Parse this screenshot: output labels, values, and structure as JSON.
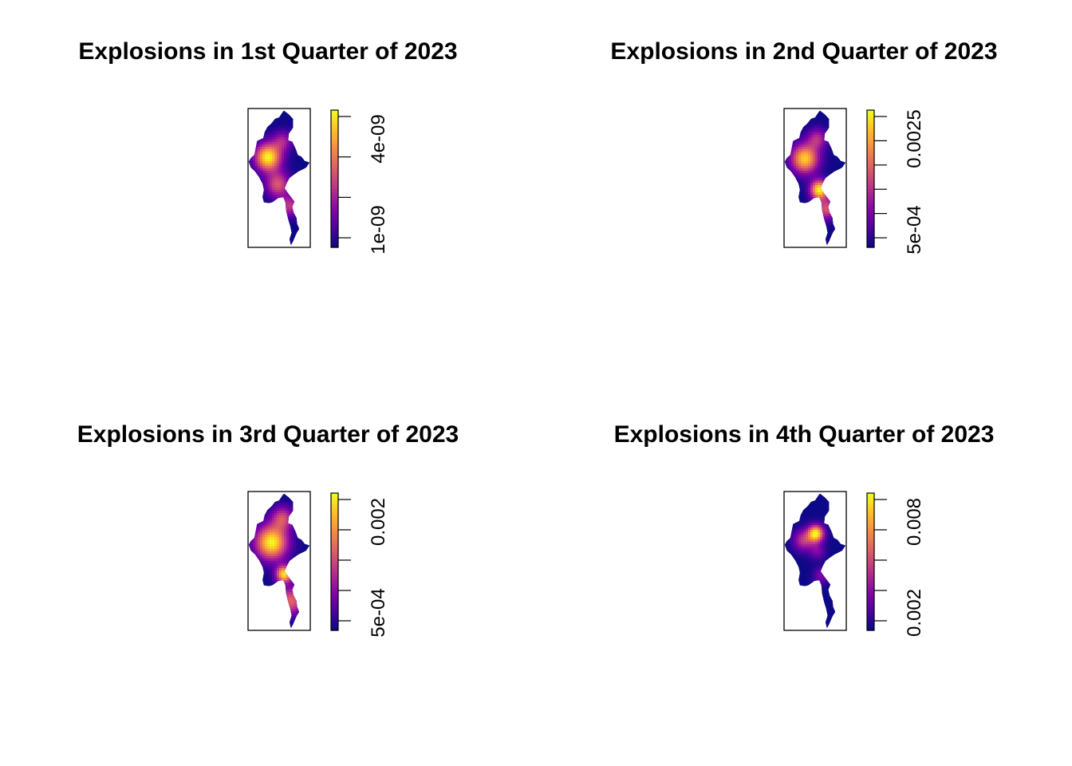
{
  "palette": {
    "stops": [
      "#0D0887",
      "#4B03A1",
      "#7E03A8",
      "#A82296",
      "#CC4778",
      "#E66C5C",
      "#F89540",
      "#FDC328",
      "#F0F921"
    ],
    "land_color": "#0D0887",
    "border_color": "#000000"
  },
  "chart_data": [
    {
      "type": "heatmap",
      "title": "Explosions in 1st Quarter of 2023",
      "legend_ticks": [
        "1e-09",
        "4e-09"
      ],
      "legend_tick_count": 4,
      "legend_range": [
        0,
        4.4e-09
      ],
      "hotspots": [
        {
          "lon": 95.1,
          "lat": 22.0,
          "intensity": 1.0,
          "spread": 1.3
        },
        {
          "lon": 96.5,
          "lat": 18.3,
          "intensity": 0.55,
          "spread": 1.2
        },
        {
          "lon": 98.2,
          "lat": 15.4,
          "intensity": 0.45,
          "spread": 1.0
        },
        {
          "lon": 97.2,
          "lat": 24.2,
          "intensity": 0.35,
          "spread": 1.0
        }
      ]
    },
    {
      "type": "heatmap",
      "title": "Explosions in 2nd Quarter of 2023",
      "legend_ticks": [
        "5e-04",
        "0.0025"
      ],
      "legend_tick_count": 6,
      "legend_range": [
        0,
        0.0029
      ],
      "hotspots": [
        {
          "lon": 95.2,
          "lat": 21.8,
          "intensity": 0.9,
          "spread": 1.35
        },
        {
          "lon": 97.3,
          "lat": 17.6,
          "intensity": 1.0,
          "spread": 0.9
        },
        {
          "lon": 98.3,
          "lat": 15.0,
          "intensity": 0.55,
          "spread": 1.0
        },
        {
          "lon": 97.0,
          "lat": 24.5,
          "intensity": 0.4,
          "spread": 1.0
        }
      ]
    },
    {
      "type": "heatmap",
      "title": "Explosions in 3rd Quarter of 2023",
      "legend_ticks": [
        "5e-04",
        "0.002"
      ],
      "legend_tick_count": 5,
      "legend_range": [
        0,
        0.0028
      ],
      "hotspots": [
        {
          "lon": 95.6,
          "lat": 21.7,
          "intensity": 1.0,
          "spread": 1.6
        },
        {
          "lon": 97.4,
          "lat": 17.4,
          "intensity": 0.95,
          "spread": 0.8
        },
        {
          "lon": 98.4,
          "lat": 13.8,
          "intensity": 0.6,
          "spread": 1.3
        },
        {
          "lon": 97.2,
          "lat": 25.0,
          "intensity": 0.5,
          "spread": 1.1
        }
      ]
    },
    {
      "type": "heatmap",
      "title": "Explosions in 4th Quarter of 2023",
      "legend_ticks": [
        "0.002",
        "0.008"
      ],
      "legend_tick_count": 5,
      "legend_range": [
        0,
        0.0095
      ],
      "hotspots": [
        {
          "lon": 96.8,
          "lat": 22.9,
          "intensity": 1.0,
          "spread": 0.8
        },
        {
          "lon": 95.0,
          "lat": 22.0,
          "intensity": 0.45,
          "spread": 1.0
        },
        {
          "lon": 97.0,
          "lat": 20.5,
          "intensity": 0.25,
          "spread": 0.8
        },
        {
          "lon": 97.6,
          "lat": 17.2,
          "intensity": 0.25,
          "spread": 0.8
        }
      ]
    }
  ]
}
